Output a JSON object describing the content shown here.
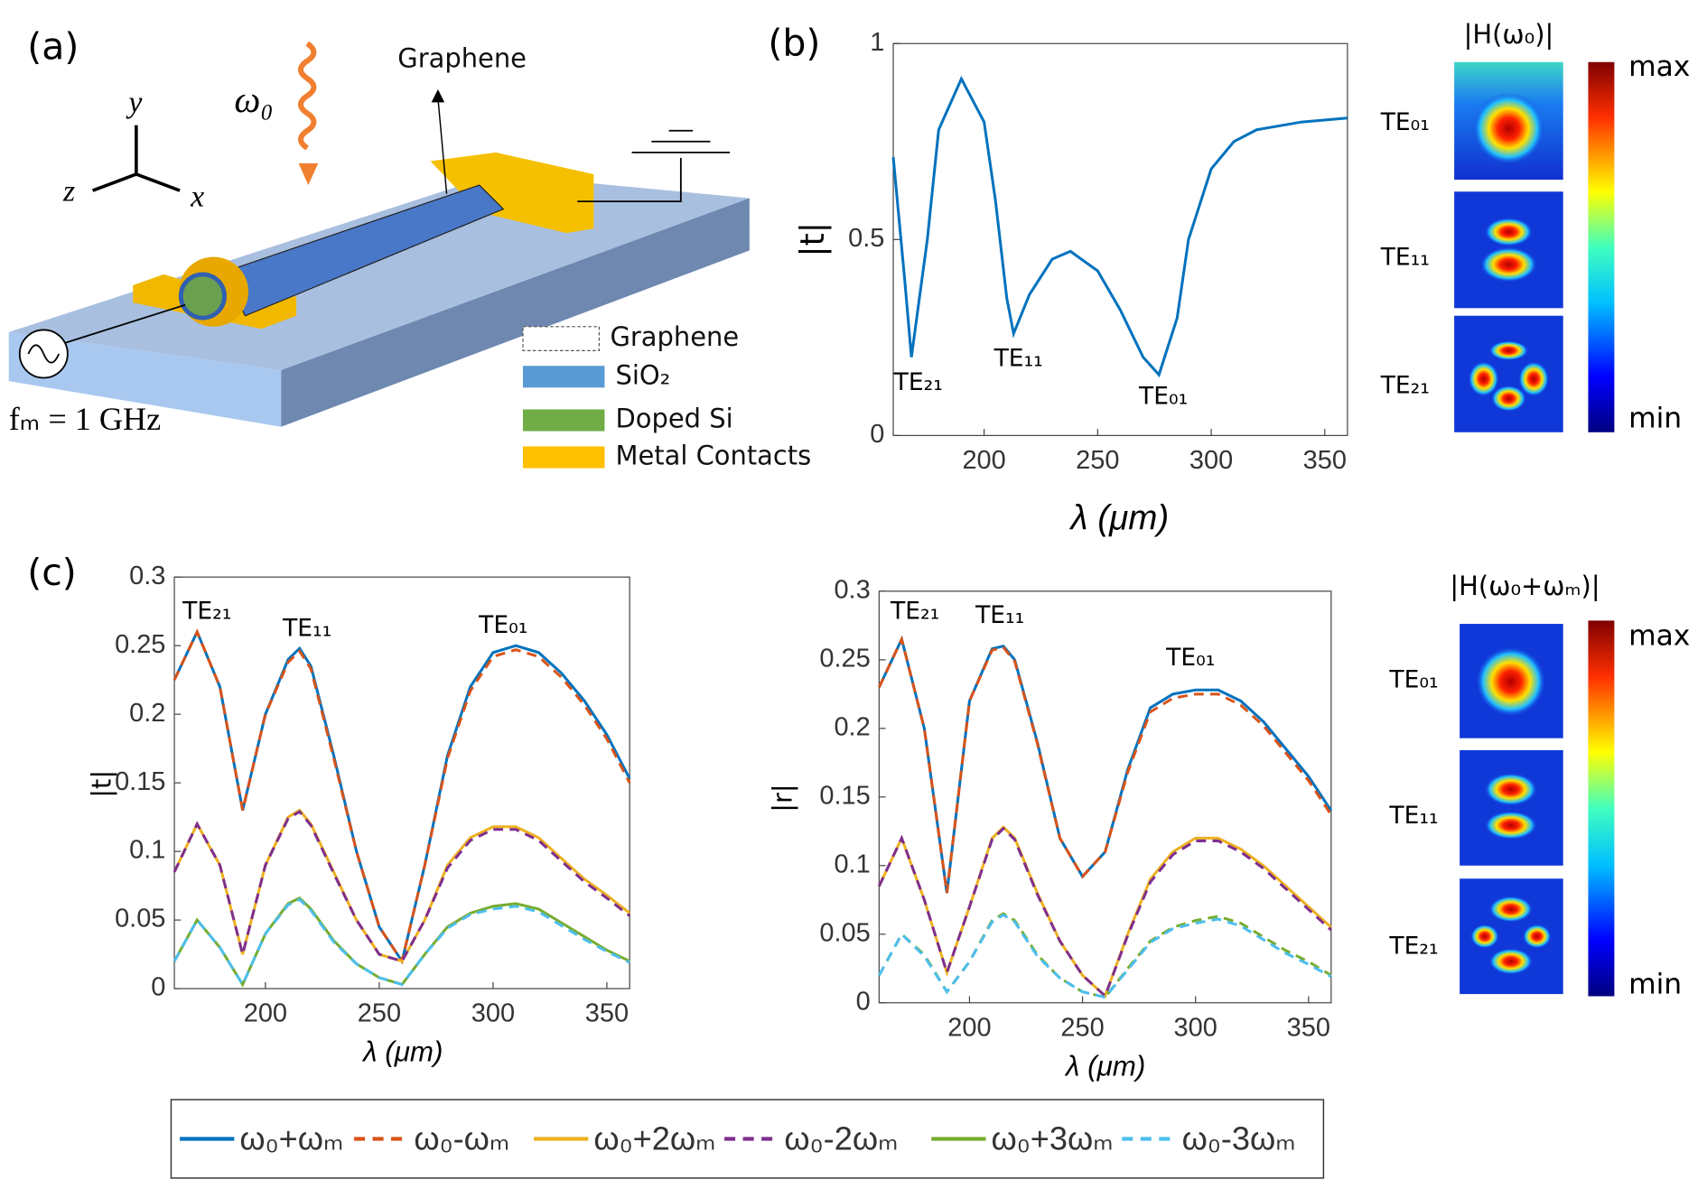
{
  "diagram": {
    "panel_labels": [
      "(a)",
      "(b)",
      "(c)"
    ],
    "schematic": {
      "graphene_arrow": "Graphene",
      "omega": "ω₀",
      "axes": [
        "y",
        "z",
        "x"
      ],
      "modulation": "fₘ = 1 GHz",
      "legend": [
        "Graphene",
        "SiO₂",
        "Doped Si",
        "Metal Contacts"
      ]
    },
    "modes_b": {
      "title": "|H(ω₀)|",
      "labels": [
        "TE₀₁",
        "TE₁₁",
        "TE₂₁"
      ],
      "max": "max",
      "min": "min"
    },
    "modes_c": {
      "title": "|H(ω₀+ωₘ)|",
      "labels": [
        "TE₀₁",
        "TE₁₁",
        "TE₂₁"
      ],
      "max": "max",
      "min": "min"
    }
  },
  "chart_data": [
    {
      "type": "line",
      "ylabel": "|t|",
      "xlabel": "λ (μm)",
      "xlim": [
        160,
        360
      ],
      "ylim": [
        0,
        1
      ],
      "xticks": [
        200,
        250,
        300,
        350
      ],
      "yticks": [
        0,
        0.5,
        1
      ],
      "annotations": [
        "TE₂₁",
        "TE₁₁",
        "TE₀₁"
      ],
      "x": [
        160,
        165,
        168,
        175,
        180,
        190,
        200,
        205,
        210,
        213,
        220,
        230,
        238,
        250,
        260,
        270,
        277,
        285,
        290,
        300,
        310,
        320,
        340,
        360
      ],
      "series": [
        {
          "color": "#0072bd",
          "style": "solid",
          "values": [
            0.71,
            0.4,
            0.2,
            0.5,
            0.78,
            0.91,
            0.8,
            0.6,
            0.35,
            0.26,
            0.36,
            0.45,
            0.47,
            0.42,
            0.32,
            0.2,
            0.155,
            0.3,
            0.5,
            0.68,
            0.75,
            0.78,
            0.8,
            0.81
          ]
        }
      ]
    },
    {
      "type": "line",
      "ylabel": "|t|",
      "xlabel": "λ (μm)",
      "xlim": [
        160,
        360
      ],
      "ylim": [
        0,
        0.3
      ],
      "xticks": [
        200,
        250,
        300,
        350
      ],
      "yticks": [
        0,
        0.05,
        0.1,
        0.15,
        0.2,
        0.25,
        0.3
      ],
      "annotations": [
        "TE₂₁",
        "TE₁₁",
        "TE₀₁"
      ],
      "x": [
        160,
        170,
        180,
        190,
        200,
        210,
        215,
        220,
        230,
        240,
        250,
        260,
        270,
        280,
        290,
        300,
        310,
        320,
        330,
        340,
        350,
        360
      ],
      "series": [
        {
          "name": "ω₀+ωₘ",
          "color": "#0072bd",
          "style": "solid",
          "values": [
            0.225,
            0.26,
            0.22,
            0.13,
            0.2,
            0.24,
            0.248,
            0.235,
            0.17,
            0.1,
            0.045,
            0.02,
            0.09,
            0.17,
            0.22,
            0.245,
            0.25,
            0.245,
            0.23,
            0.21,
            0.185,
            0.153
          ]
        },
        {
          "name": "ω₀-ωₘ",
          "color": "#d95319",
          "style": "dashed",
          "values": [
            0.225,
            0.26,
            0.22,
            0.13,
            0.2,
            0.238,
            0.246,
            0.233,
            0.168,
            0.1,
            0.045,
            0.02,
            0.09,
            0.168,
            0.217,
            0.242,
            0.247,
            0.242,
            0.227,
            0.207,
            0.182,
            0.15
          ]
        },
        {
          "name": "ω₀+2ωₘ",
          "color": "#edb120",
          "style": "solid",
          "values": [
            0.085,
            0.12,
            0.09,
            0.025,
            0.09,
            0.125,
            0.13,
            0.12,
            0.085,
            0.05,
            0.025,
            0.02,
            0.05,
            0.09,
            0.11,
            0.118,
            0.118,
            0.11,
            0.095,
            0.08,
            0.068,
            0.055
          ]
        },
        {
          "name": "ω₀-2ωₘ",
          "color": "#7e2f8e",
          "style": "dashed",
          "values": [
            0.085,
            0.12,
            0.09,
            0.025,
            0.09,
            0.124,
            0.129,
            0.119,
            0.084,
            0.05,
            0.025,
            0.02,
            0.05,
            0.088,
            0.108,
            0.116,
            0.116,
            0.108,
            0.093,
            0.078,
            0.066,
            0.053
          ]
        },
        {
          "name": "ω₀+3ωₘ",
          "color": "#77ac30",
          "style": "solid",
          "values": [
            0.02,
            0.05,
            0.03,
            0.003,
            0.04,
            0.062,
            0.066,
            0.058,
            0.035,
            0.018,
            0.008,
            0.003,
            0.025,
            0.045,
            0.055,
            0.06,
            0.062,
            0.058,
            0.048,
            0.038,
            0.028,
            0.02
          ]
        },
        {
          "name": "ω₀-3ωₘ",
          "color": "#4dbeee",
          "style": "dashed",
          "values": [
            0.02,
            0.05,
            0.03,
            0.003,
            0.04,
            0.061,
            0.065,
            0.057,
            0.034,
            0.018,
            0.008,
            0.003,
            0.025,
            0.044,
            0.054,
            0.058,
            0.06,
            0.056,
            0.046,
            0.036,
            0.027,
            0.019
          ]
        }
      ]
    },
    {
      "type": "line",
      "ylabel": "|r|",
      "xlabel": "λ (μm)",
      "xlim": [
        160,
        360
      ],
      "ylim": [
        0,
        0.3
      ],
      "xticks": [
        200,
        250,
        300,
        350
      ],
      "yticks": [
        0,
        0.05,
        0.1,
        0.15,
        0.2,
        0.25,
        0.3
      ],
      "annotations": [
        "TE₂₁",
        "TE₁₁",
        "TE₀₁"
      ],
      "x": [
        160,
        170,
        180,
        190,
        200,
        210,
        215,
        220,
        230,
        240,
        250,
        260,
        270,
        280,
        290,
        300,
        310,
        320,
        330,
        340,
        350,
        360
      ],
      "series": [
        {
          "color": "#0072bd",
          "style": "solid",
          "values": [
            0.23,
            0.265,
            0.2,
            0.08,
            0.22,
            0.258,
            0.26,
            0.25,
            0.19,
            0.12,
            0.092,
            0.11,
            0.17,
            0.215,
            0.225,
            0.228,
            0.228,
            0.22,
            0.205,
            0.185,
            0.165,
            0.14
          ]
        },
        {
          "color": "#d95319",
          "style": "dashed",
          "values": [
            0.23,
            0.265,
            0.2,
            0.08,
            0.22,
            0.257,
            0.259,
            0.249,
            0.189,
            0.12,
            0.092,
            0.11,
            0.168,
            0.212,
            0.222,
            0.225,
            0.225,
            0.217,
            0.202,
            0.182,
            0.162,
            0.137
          ]
        },
        {
          "color": "#edb120",
          "style": "solid",
          "values": [
            0.085,
            0.12,
            0.075,
            0.022,
            0.07,
            0.12,
            0.128,
            0.12,
            0.08,
            0.045,
            0.02,
            0.005,
            0.05,
            0.09,
            0.11,
            0.12,
            0.12,
            0.112,
            0.1,
            0.085,
            0.07,
            0.055
          ]
        },
        {
          "color": "#7e2f8e",
          "style": "dashed",
          "values": [
            0.085,
            0.12,
            0.075,
            0.022,
            0.07,
            0.119,
            0.127,
            0.119,
            0.079,
            0.045,
            0.02,
            0.005,
            0.049,
            0.088,
            0.108,
            0.118,
            0.118,
            0.11,
            0.098,
            0.083,
            0.068,
            0.053
          ]
        },
        {
          "color": "#77ac30",
          "style": "dashed",
          "values": [
            0.02,
            0.05,
            0.035,
            0.008,
            0.03,
            0.06,
            0.065,
            0.06,
            0.035,
            0.018,
            0.008,
            0.004,
            0.025,
            0.045,
            0.055,
            0.06,
            0.063,
            0.058,
            0.048,
            0.038,
            0.03,
            0.02
          ]
        },
        {
          "color": "#4dbeee",
          "style": "dashed",
          "values": [
            0.02,
            0.05,
            0.034,
            0.008,
            0.03,
            0.059,
            0.064,
            0.059,
            0.034,
            0.018,
            0.008,
            0.004,
            0.024,
            0.044,
            0.054,
            0.058,
            0.061,
            0.056,
            0.046,
            0.036,
            0.028,
            0.019
          ]
        }
      ]
    }
  ]
}
